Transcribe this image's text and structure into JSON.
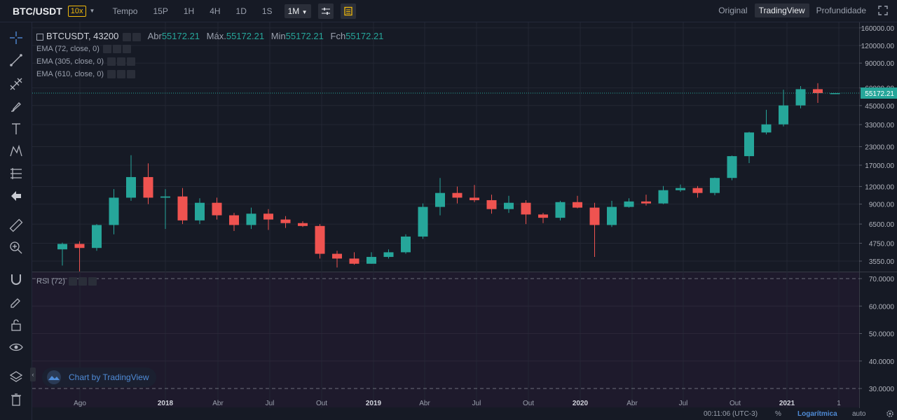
{
  "header": {
    "pair": "BTC/USDT",
    "leverage": "10x",
    "intervals": [
      "Tempo",
      "15P",
      "1H",
      "4H",
      "1D",
      "1S",
      "1M"
    ],
    "active_interval": "1M",
    "views": [
      "Original",
      "TradingView",
      "Profundidade"
    ],
    "active_view": "TradingView"
  },
  "legend": {
    "symbol": "BTCUSDT, 43200",
    "open_label": "Abr",
    "open": "55172.21",
    "high_label": "Máx.",
    "high": "55172.21",
    "low_label": "Min",
    "low": "55172.21",
    "close_label": "Fch",
    "close": "55172.21",
    "indicators": [
      "EMA (72, close, 0)",
      "EMA (305, close, 0)",
      "EMA (610, close, 0)"
    ],
    "rsi": "RSI (72)"
  },
  "watermark": "Chart by TradingView",
  "bottom": {
    "time": "00:11:06 (UTC-3)",
    "pct": "%",
    "log": "Logarítmica",
    "auto": "auto"
  },
  "colors": {
    "up": "#26a69a",
    "down": "#ef5350",
    "bg": "#161a25",
    "price_tag": "#26a69a"
  },
  "chart_data": {
    "type": "candlestick",
    "scale": "log",
    "price_axis_labels": [
      "160000.00",
      "120000.00",
      "90000.00",
      "60000.00",
      "45000.00",
      "33000.00",
      "23000.00",
      "17000.00",
      "12000.00",
      "9000.00",
      "6500.00",
      "4750.00",
      "3550.00"
    ],
    "price_axis_values": [
      160000,
      120000,
      90000,
      60000,
      45000,
      33000,
      23000,
      17000,
      12000,
      9000,
      6500,
      4750,
      3550
    ],
    "last_price": "55172.21",
    "time_labels": [
      "Ago",
      "2018",
      "Abr",
      "Jul",
      "Out",
      "2019",
      "Abr",
      "Jul",
      "Out",
      "2020",
      "Abr",
      "Jul",
      "Out",
      "2021",
      "1"
    ],
    "candles": [
      {
        "o": 4300,
        "c": 4700,
        "h": 4800,
        "l": 3300
      },
      {
        "o": 4700,
        "c": 4400,
        "h": 4900,
        "l": 3000
      },
      {
        "o": 4400,
        "c": 6400,
        "h": 6500,
        "l": 4200
      },
      {
        "o": 6400,
        "c": 10000,
        "h": 11500,
        "l": 5500
      },
      {
        "o": 10000,
        "c": 14000,
        "h": 20000,
        "l": 9500
      },
      {
        "o": 14000,
        "c": 10000,
        "h": 17500,
        "l": 9000
      },
      {
        "o": 10000,
        "c": 10200,
        "h": 11500,
        "l": 6000
      },
      {
        "o": 10200,
        "c": 6900,
        "h": 11700,
        "l": 6500
      },
      {
        "o": 6900,
        "c": 9200,
        "h": 9900,
        "l": 6500
      },
      {
        "o": 9200,
        "c": 7500,
        "h": 10000,
        "l": 7000
      },
      {
        "o": 7500,
        "c": 6400,
        "h": 7800,
        "l": 5800
      },
      {
        "o": 6400,
        "c": 7700,
        "h": 8500,
        "l": 6000
      },
      {
        "o": 7700,
        "c": 7000,
        "h": 8300,
        "l": 5900
      },
      {
        "o": 7000,
        "c": 6600,
        "h": 7400,
        "l": 6100
      },
      {
        "o": 6600,
        "c": 6300,
        "h": 6800,
        "l": 6200
      },
      {
        "o": 6300,
        "c": 4000,
        "h": 6500,
        "l": 3700
      },
      {
        "o": 4000,
        "c": 3700,
        "h": 4200,
        "l": 3200
      },
      {
        "o": 3700,
        "c": 3400,
        "h": 4100,
        "l": 3350
      },
      {
        "o": 3400,
        "c": 3800,
        "h": 4100,
        "l": 3400
      },
      {
        "o": 3800,
        "c": 4100,
        "h": 4300,
        "l": 3700
      },
      {
        "o": 4100,
        "c": 5300,
        "h": 5500,
        "l": 4000
      },
      {
        "o": 5300,
        "c": 8600,
        "h": 9100,
        "l": 5100
      },
      {
        "o": 8600,
        "c": 10800,
        "h": 13800,
        "l": 7500
      },
      {
        "o": 10800,
        "c": 10000,
        "h": 12000,
        "l": 9100
      },
      {
        "o": 10000,
        "c": 9600,
        "h": 12300,
        "l": 9300
      },
      {
        "o": 9600,
        "c": 8300,
        "h": 10500,
        "l": 7700
      },
      {
        "o": 8300,
        "c": 9200,
        "h": 10300,
        "l": 7800
      },
      {
        "o": 9200,
        "c": 7600,
        "h": 9600,
        "l": 6500
      },
      {
        "o": 7600,
        "c": 7200,
        "h": 7800,
        "l": 6600
      },
      {
        "o": 7200,
        "c": 9300,
        "h": 9500,
        "l": 6900
      },
      {
        "o": 9300,
        "c": 8500,
        "h": 10300,
        "l": 8400
      },
      {
        "o": 8500,
        "c": 6400,
        "h": 9200,
        "l": 3800
      },
      {
        "o": 6400,
        "c": 8600,
        "h": 9500,
        "l": 6200
      },
      {
        "o": 8600,
        "c": 9400,
        "h": 9900,
        "l": 8500
      },
      {
        "o": 9400,
        "c": 9100,
        "h": 10500,
        "l": 8800
      },
      {
        "o": 9100,
        "c": 11300,
        "h": 12100,
        "l": 9000
      },
      {
        "o": 11300,
        "c": 11700,
        "h": 12400,
        "l": 11000
      },
      {
        "o": 11700,
        "c": 10800,
        "h": 12100,
        "l": 10000
      },
      {
        "o": 10800,
        "c": 13800,
        "h": 13900,
        "l": 10400
      },
      {
        "o": 13800,
        "c": 19700,
        "h": 19900,
        "l": 13300
      },
      {
        "o": 19700,
        "c": 29000,
        "h": 29300,
        "l": 17600
      },
      {
        "o": 29000,
        "c": 33100,
        "h": 42000,
        "l": 28100
      },
      {
        "o": 33100,
        "c": 45100,
        "h": 58300,
        "l": 32000
      },
      {
        "o": 45100,
        "c": 58800,
        "h": 61800,
        "l": 43000
      },
      {
        "o": 58800,
        "c": 55172.21,
        "h": 64800,
        "l": 47000
      },
      {
        "o": 55172.21,
        "c": 55172.21,
        "h": 55172.21,
        "l": 55172.21
      }
    ],
    "rsi_axis_labels": [
      "70.0000",
      "60.0000",
      "50.0000",
      "40.0000",
      "30.0000"
    ],
    "rsi_axis_values": [
      70,
      60,
      50,
      40,
      30
    ],
    "rsi_levels": [
      70,
      30
    ]
  }
}
